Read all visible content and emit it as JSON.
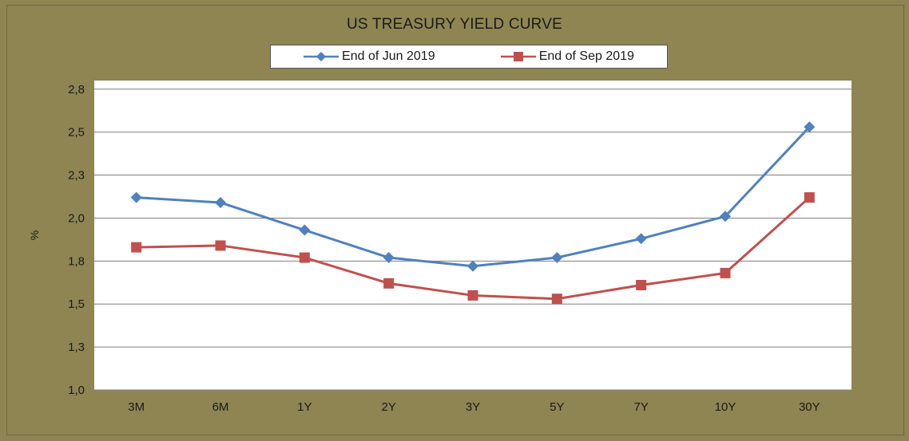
{
  "colors": {
    "background": "#8e8553",
    "plot_area": "#ffffff",
    "gridline": "#7f7f7f",
    "series_jun": "#4f81bd",
    "series_sep": "#c0504d"
  },
  "chart_data": {
    "type": "line",
    "title": "US TREASURY YIELD CURVE",
    "xlabel": "",
    "ylabel": "%",
    "categories": [
      "3M",
      "6M",
      "1Y",
      "2Y",
      "3Y",
      "5Y",
      "7Y",
      "10Y",
      "30Y"
    ],
    "series": [
      {
        "name": "End of Jun 2019",
        "marker": "diamond",
        "values": [
          2.12,
          2.09,
          1.93,
          1.77,
          1.72,
          1.77,
          1.88,
          2.01,
          2.53
        ]
      },
      {
        "name": "End of Sep 2019",
        "marker": "square",
        "values": [
          1.83,
          1.84,
          1.77,
          1.62,
          1.55,
          1.53,
          1.61,
          1.68,
          2.12
        ]
      }
    ],
    "ylim": [
      1.0,
      2.8
    ],
    "yticks": [
      1.0,
      1.25,
      1.5,
      1.75,
      2.0,
      2.25,
      2.5,
      2.75
    ],
    "ytick_labels": [
      "1,0",
      "1,3",
      "1,5",
      "1,8",
      "2,0",
      "2,3",
      "2,5",
      "2,8"
    ],
    "grid": true,
    "legend_position": "top-center"
  }
}
